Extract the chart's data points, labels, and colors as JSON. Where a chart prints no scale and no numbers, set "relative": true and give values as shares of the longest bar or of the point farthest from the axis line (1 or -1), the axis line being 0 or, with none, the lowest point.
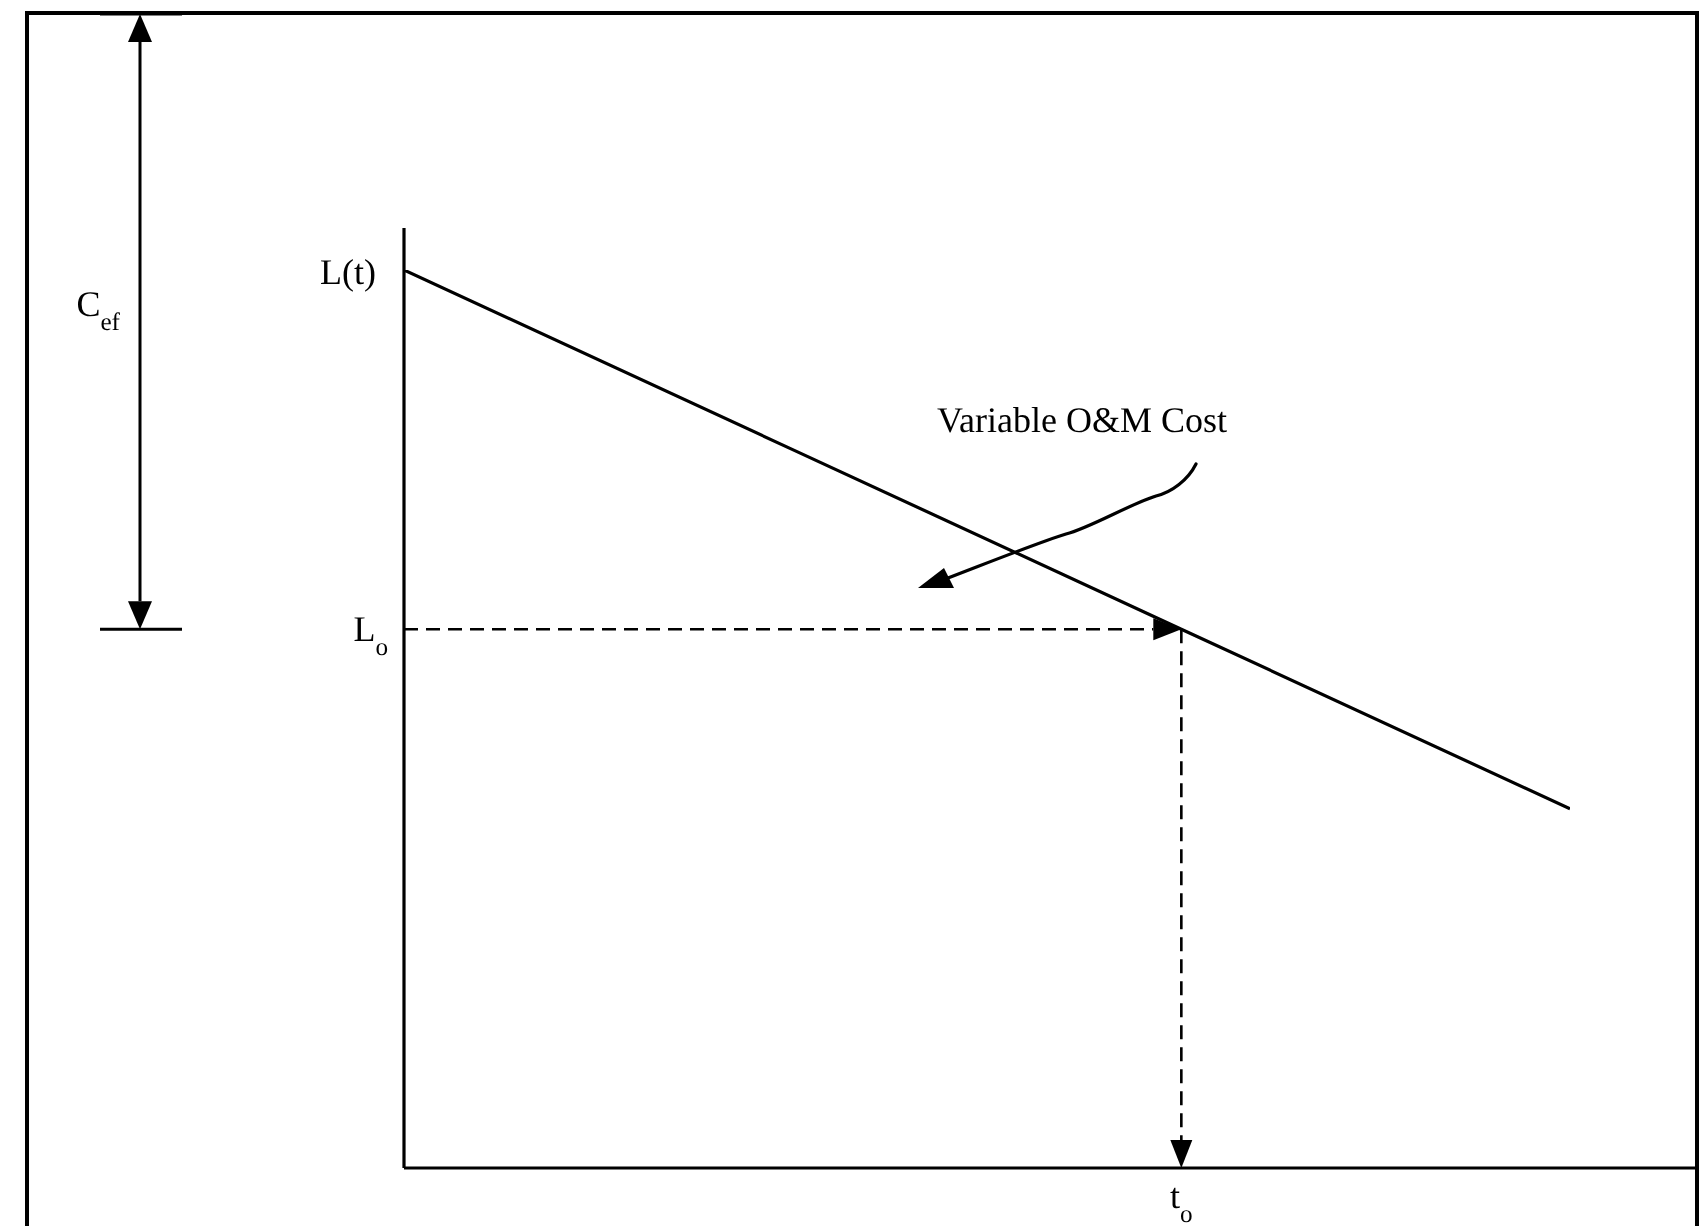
{
  "chart_data": {
    "type": "line",
    "relative": true,
    "ylabel": "L(t)",
    "categories": [
      null,
      null,
      null,
      null
    ],
    "series": [
      {
        "color": "#000000",
        "values": [
          1,
          0.8,
          0.6,
          0.4
        ]
      }
    ],
    "line_style": "solid",
    "ref_lines": [
      {
        "axis": "y",
        "value": 0.6,
        "label": "L$_{o}$",
        "line_style": "dashed",
        "color": "#000000"
      }
    ],
    "annotations": [
      "C$_{ef}$",
      "Variable O&M Cost",
      {
        "text": "t$_{o}$",
        "y": 0.6
      }
    ]
  }
}
